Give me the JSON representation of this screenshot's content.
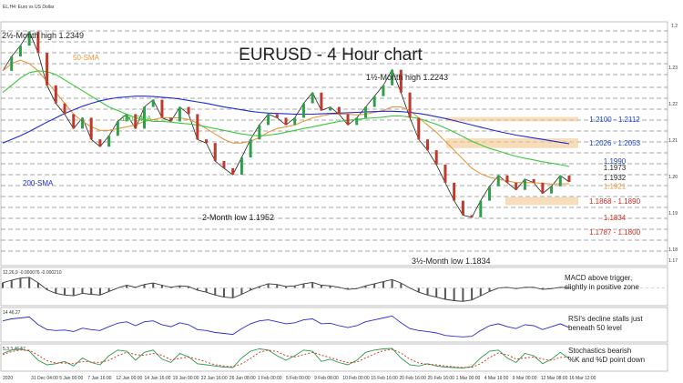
{
  "header": {
    "symbol_line": "EL,H4: Euro vs US Dollar"
  },
  "chart_data": {
    "type": "line",
    "title": "EURUSD - 4 Hour chart",
    "price_ticks": [
      "1.2",
      "1.23",
      "1.22",
      "1.21",
      "1.20",
      "1.19",
      "1.18",
      "1.17"
    ],
    "date_ticks": [
      "2020",
      "31 Dec 04:00",
      "5 Jan 00:00",
      "7 Jan 16:00",
      "12 Jan 00:00",
      "14 Jan 16:00",
      "19 Jan 00:00",
      "22 Jan 16:00",
      "26 Jan 08:00",
      "1 Feb 00:00",
      "5 Feb 00:00",
      "9 Feb 08:00",
      "10 Feb 00:00",
      "15 Feb 16:00",
      "20 Feb 16:00",
      "25 Feb 16:00",
      "1 Mar 00:00",
      "4 Mar 16:00",
      "9 Mar 00:00",
      "12 Mar 08:00",
      "16 Mar 12:00"
    ],
    "annotations": {
      "high1": "2½-Month high 1.2349",
      "high2": "1½-Month high 1.2243",
      "low1": "2-Month low 1.1952",
      "low2": "3½-Month low 1.1834",
      "sma50": "50-SMA",
      "sma100": "100-SMA",
      "sma200": "200-SMA"
    },
    "levels": [
      {
        "label": "1.2100 - 1.2112",
        "color": "#1a3fcc"
      },
      {
        "label": "1.2026 - 1.2053",
        "color": "#1a3fcc"
      },
      {
        "label": "1.1990",
        "color": "#1a3fcc"
      },
      {
        "label": "1.1973",
        "color": "#222222"
      },
      {
        "label": "1.1932",
        "color": "#222222"
      },
      {
        "label": "1.1921",
        "color": "#e8963c"
      },
      {
        "label": "1.1868 - 1.1890",
        "color": "#d0281e"
      },
      {
        "label": "1.1834",
        "color": "#d0281e"
      },
      {
        "label": "1.1787 - 1.1800",
        "color": "#d0281e"
      }
    ],
    "price_series": [
      {
        "name": "price",
        "values": [
          1.224,
          1.228,
          1.231,
          1.2349,
          1.229,
          1.22,
          1.215,
          1.212,
          1.208,
          1.211,
          1.205,
          1.203,
          1.206,
          1.21,
          1.212,
          1.208,
          1.214,
          1.216,
          1.211,
          1.21,
          1.214,
          1.212,
          1.205,
          1.204,
          1.199,
          1.197,
          1.1952,
          1.2,
          1.205,
          1.209,
          1.212,
          1.211,
          1.209,
          1.211,
          1.215,
          1.218,
          1.213,
          1.214,
          1.212,
          1.209,
          1.211,
          1.214,
          1.217,
          1.22,
          1.2243,
          1.218,
          1.211,
          1.205,
          1.202,
          1.198,
          1.193,
          1.188,
          1.184,
          1.1834,
          1.188,
          1.192,
          1.195,
          1.193,
          1.191,
          1.194,
          1.193,
          1.19,
          1.192,
          1.195,
          1.1932
        ]
      },
      {
        "name": "50-SMA",
        "color": "#e8963c",
        "values": [
          1.224,
          1.226,
          1.227,
          1.226,
          1.224,
          1.221,
          1.218,
          1.215,
          1.212,
          1.21,
          1.2085,
          1.2075,
          1.2075,
          1.208,
          1.2085,
          1.209,
          1.21,
          1.2105,
          1.211,
          1.211,
          1.211,
          1.2105,
          1.2095,
          1.208,
          1.2065,
          1.205,
          1.204,
          1.204,
          1.2045,
          1.2055,
          1.207,
          1.208,
          1.2085,
          1.209,
          1.21,
          1.211,
          1.2115,
          1.212,
          1.212,
          1.212,
          1.2118,
          1.212,
          1.2125,
          1.213,
          1.214,
          1.214,
          1.213,
          1.211,
          1.209,
          1.207,
          1.2045,
          1.202,
          1.1995,
          1.197,
          1.1955,
          1.1945,
          1.194,
          1.1935,
          1.193,
          1.193,
          1.193,
          1.1928,
          1.1926,
          1.1927,
          1.1927
        ]
      },
      {
        "name": "100-SMA",
        "color": "#3cc83c",
        "values": [
          1.218,
          1.22,
          1.222,
          1.2235,
          1.224,
          1.2238,
          1.223,
          1.2215,
          1.22,
          1.2185,
          1.217,
          1.2155,
          1.214,
          1.213,
          1.212,
          1.211,
          1.2105,
          1.21,
          1.21,
          1.2098,
          1.2095,
          1.2093,
          1.209,
          1.2085,
          1.208,
          1.2075,
          1.207,
          1.2065,
          1.2062,
          1.206,
          1.2062,
          1.2065,
          1.207,
          1.2075,
          1.208,
          1.2085,
          1.209,
          1.2095,
          1.21,
          1.2103,
          1.2105,
          1.2108,
          1.211,
          1.2112,
          1.2115,
          1.2115,
          1.2112,
          1.2108,
          1.21,
          1.2092,
          1.2082,
          1.207,
          1.2058,
          1.2045,
          1.2035,
          1.2025,
          1.2018,
          1.201,
          1.2003,
          1.1998,
          1.1993,
          1.1988,
          1.1984,
          1.198,
          1.1975
        ]
      },
      {
        "name": "200-SMA",
        "color": "#1e2ad2",
        "values": [
          1.204,
          1.205,
          1.206,
          1.2072,
          1.2085,
          1.2098,
          1.211,
          1.2122,
          1.2132,
          1.2142,
          1.215,
          1.2157,
          1.2162,
          1.2166,
          1.2168,
          1.217,
          1.217,
          1.2169,
          1.2167,
          1.2165,
          1.2162,
          1.2158,
          1.2154,
          1.215,
          1.2145,
          1.214,
          1.2136,
          1.2132,
          1.2128,
          1.2125,
          1.2123,
          1.2122,
          1.2121,
          1.212,
          1.212,
          1.212,
          1.2121,
          1.2122,
          1.2123,
          1.2124,
          1.2125,
          1.2126,
          1.2127,
          1.2128,
          1.2128,
          1.2127,
          1.2125,
          1.2122,
          1.2118,
          1.2113,
          1.2108,
          1.2102,
          1.2096,
          1.209,
          1.2084,
          1.2078,
          1.2072,
          1.2067,
          1.2062,
          1.2058,
          1.2054,
          1.205,
          1.2046,
          1.2042,
          1.2038
        ]
      }
    ],
    "ylim": [
      1.17,
      1.2376
    ],
    "macd": {
      "header": "12,26,9 -0.000076 -0.000210",
      "comment_line1": "MACD above trigger,",
      "comment_line2": "slightly in positive zone",
      "values": [
        0.0015,
        0.0022,
        0.0028,
        0.003,
        0.0015,
        -0.0005,
        -0.0015,
        -0.002,
        -0.0022,
        -0.0015,
        -0.0018,
        -0.002,
        -0.001,
        0.0,
        0.0008,
        0.0002,
        0.001,
        0.0014,
        0.0008,
        0.0002,
        0.0006,
        0.0004,
        -0.0006,
        -0.0012,
        -0.002,
        -0.0026,
        -0.0028,
        -0.0018,
        -0.0006,
        0.0004,
        0.0012,
        0.001,
        0.0004,
        0.0006,
        0.0012,
        0.0016,
        0.0008,
        0.0006,
        0.0002,
        -0.0004,
        -0.0002,
        0.0006,
        0.0012,
        0.0018,
        0.0024,
        0.0014,
        0.0,
        -0.0012,
        -0.002,
        -0.0026,
        -0.0032,
        -0.0036,
        -0.0038,
        -0.0034,
        -0.0022,
        -0.001,
        0.0,
        0.0002,
        -0.0002,
        0.0002,
        0.0002,
        -0.0004,
        -0.0002,
        0.0002,
        0.0001
      ],
      "ylim": [
        -0.0045,
        0.0035
      ]
    },
    "rsi": {
      "header": "14 46.27",
      "comment_line1": "RSI's decline stalls just",
      "comment_line2": "beneath 50 level",
      "values": [
        60,
        64,
        66,
        68,
        52,
        42,
        40,
        41,
        38,
        45,
        42,
        40,
        48,
        55,
        58,
        50,
        58,
        60,
        52,
        48,
        56,
        52,
        42,
        40,
        36,
        34,
        32,
        44,
        54,
        60,
        62,
        58,
        54,
        56,
        62,
        64,
        54,
        55,
        50,
        46,
        50,
        58,
        62,
        66,
        70,
        56,
        44,
        40,
        38,
        35,
        30,
        28,
        27,
        28,
        40,
        50,
        54,
        48,
        44,
        52,
        50,
        42,
        48,
        54,
        46
      ],
      "ylim": [
        20,
        80
      ]
    },
    "stochastics": {
      "header": "5,3,3 46.57",
      "comment_line1": "Stochastics bearish",
      "comment_line2": "%K and %D point down",
      "k_values": [
        70,
        85,
        90,
        80,
        40,
        20,
        25,
        35,
        15,
        50,
        30,
        20,
        60,
        85,
        80,
        40,
        75,
        85,
        45,
        30,
        70,
        55,
        25,
        20,
        15,
        10,
        8,
        50,
        80,
        90,
        85,
        60,
        40,
        60,
        85,
        80,
        35,
        45,
        30,
        20,
        40,
        75,
        85,
        90,
        92,
        50,
        20,
        15,
        25,
        15,
        10,
        8,
        6,
        12,
        50,
        80,
        85,
        50,
        30,
        70,
        60,
        25,
        45,
        75,
        47
      ],
      "d_values": [
        65,
        78,
        85,
        84,
        62,
        38,
        28,
        28,
        25,
        35,
        32,
        30,
        40,
        60,
        75,
        65,
        62,
        70,
        62,
        42,
        48,
        55,
        45,
        32,
        20,
        15,
        11,
        25,
        48,
        75,
        85,
        78,
        60,
        55,
        65,
        75,
        62,
        52,
        40,
        30,
        32,
        50,
        68,
        82,
        88,
        72,
        45,
        28,
        22,
        20,
        15,
        11,
        8,
        9,
        25,
        52,
        72,
        65,
        45,
        50,
        55,
        45,
        40,
        52,
        55
      ],
      "ylim": [
        0,
        100
      ]
    }
  }
}
